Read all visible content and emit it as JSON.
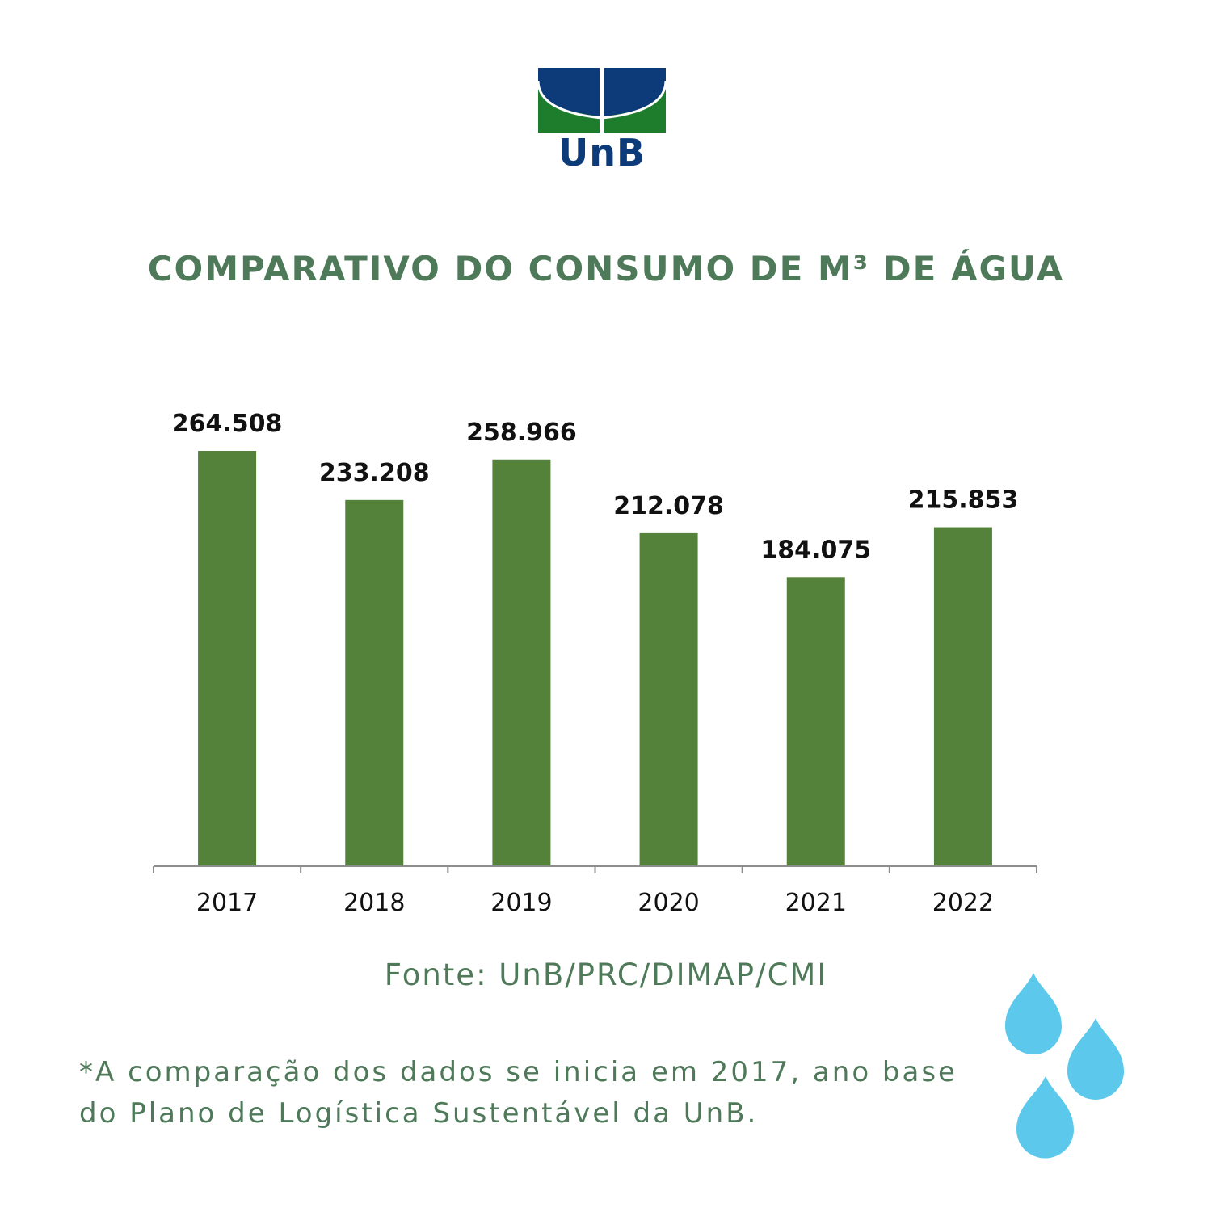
{
  "logo": {
    "text": "UnB",
    "colors": {
      "blue": "#0d3b7a",
      "green": "#1e7d2c"
    }
  },
  "title": "COMPARATIVO DO CONSUMO DE M³ DE ÁGUA",
  "chart_data": {
    "type": "bar",
    "categories": [
      "2017",
      "2018",
      "2019",
      "2020",
      "2021",
      "2022"
    ],
    "values": [
      264508,
      233208,
      258966,
      212078,
      184075,
      215853
    ],
    "value_labels": [
      "264.508",
      "233.208",
      "258.966",
      "212.078",
      "184.075",
      "215.853"
    ],
    "ylim": [
      0,
      264508
    ],
    "bar_color": "#55823a",
    "grid": false,
    "legend": "none"
  },
  "source": "Fonte: UnB/PRC/DIMAP/CMI",
  "note": "*A comparação dos dados se inicia em 2017, ano base do Plano de Logística Sustentável da UnB.",
  "decoration": {
    "icon": "water-drops-icon",
    "color": "#5bc8ec"
  }
}
